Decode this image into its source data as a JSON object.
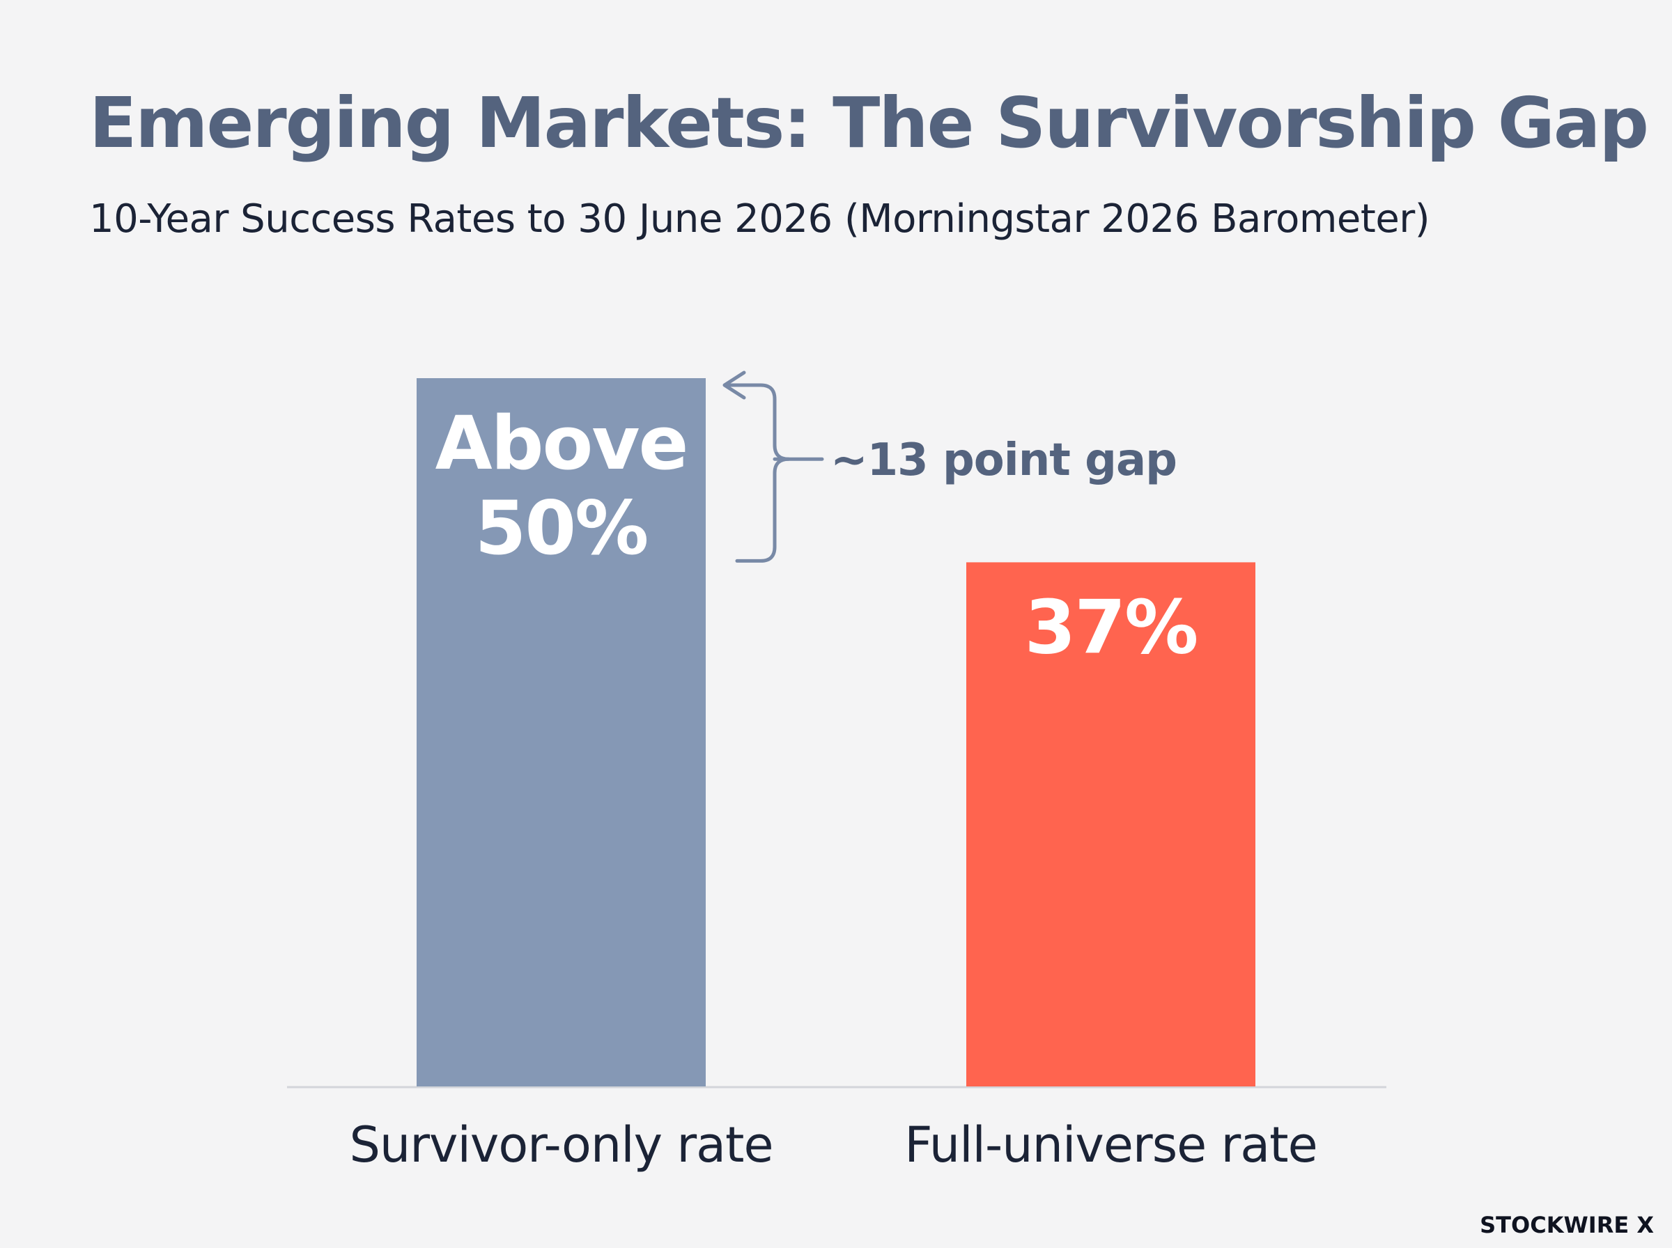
{
  "title": "Emerging Markets: The Survivorship Gap",
  "subtitle": "10-Year Success Rates to 30 June 2026 (Morningstar 2026 Barometer)",
  "brand": "STOCKWIRE X",
  "colors": {
    "background": "#f4f4f5",
    "title": "#54637e",
    "survivor_bar": "#8598b5",
    "full_universe_bar": "#ff644f",
    "bracket": "#7889a6",
    "annotation_text": "#54637e",
    "baseline": "#d3d5da",
    "category_label": "#1b2336",
    "bar_label": "#ffffff"
  },
  "chart_data": {
    "type": "bar",
    "title": "Emerging Markets: The Survivorship Gap",
    "subtitle": "10-Year Success Rates to 30 June 2026 (Morningstar 2026 Barometer)",
    "categories": [
      "Survivor-only rate",
      "Full-universe rate"
    ],
    "values": [
      50,
      37
    ],
    "data_labels": [
      [
        "Above",
        "50%"
      ],
      [
        "37%"
      ]
    ],
    "annotation": {
      "text": "~13 point gap",
      "from_category": "Full-universe rate",
      "to_category": "Survivor-only rate"
    },
    "xlabel": "",
    "ylabel": "",
    "ylim": [
      0,
      50
    ],
    "grid": false,
    "legend": "none"
  }
}
